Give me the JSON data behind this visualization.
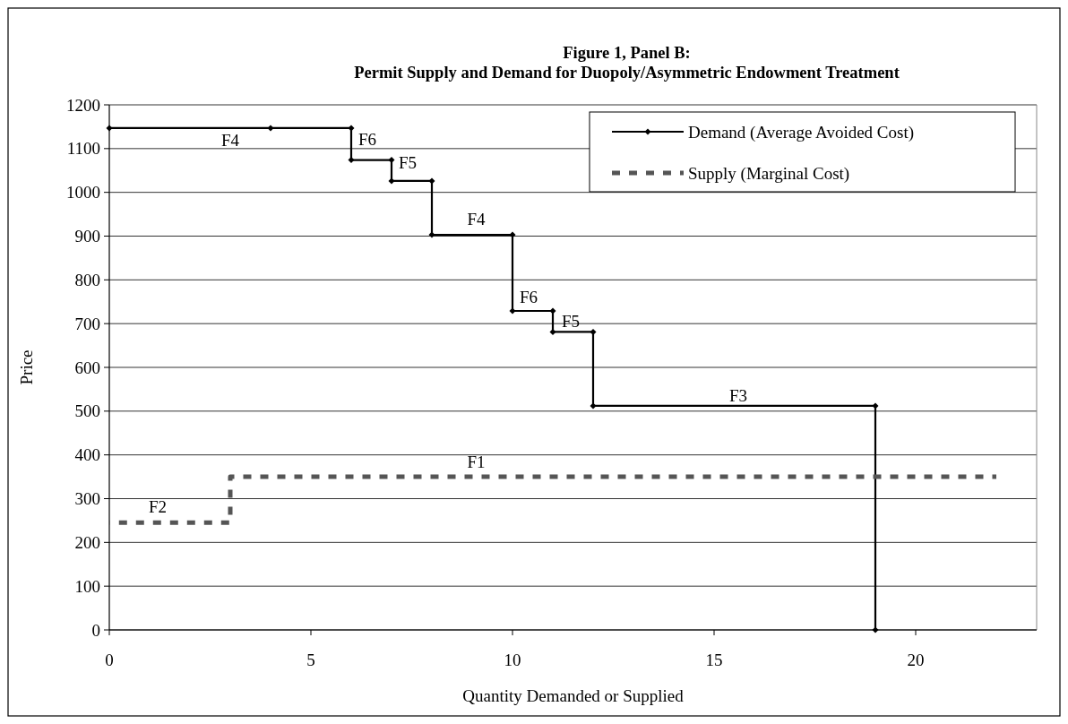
{
  "chart_data": {
    "type": "line",
    "title": "Figure 1, Panel B:",
    "subtitle": "Permit Supply and Demand for Duopoly/Asymmetric Endowment Treatment",
    "xlabel": "Quantity Demanded or Supplied",
    "ylabel": "Price",
    "series": [
      {
        "name": "Demand (Average Avoided Cost)",
        "color": "#000000",
        "marker": "diamond",
        "line_style": "solid",
        "x": [
          0,
          4,
          6,
          6,
          7,
          7,
          8,
          8,
          10,
          10,
          11,
          11,
          12,
          12,
          19,
          19
        ],
        "values": [
          1147,
          1147,
          1147,
          1074,
          1074,
          1026,
          1026,
          903,
          903,
          729,
          729,
          681,
          681,
          512,
          512,
          0
        ]
      },
      {
        "name": "Supply (Marginal Cost)",
        "color": "#555555",
        "marker": "none",
        "line_style": "dashed",
        "x": [
          0,
          3,
          3,
          22
        ],
        "values": [
          245,
          245,
          350,
          350
        ]
      }
    ],
    "xlim": [
      0,
      23
    ],
    "xticks": [
      0,
      5,
      10,
      15,
      20
    ],
    "ylim": [
      0,
      1200
    ],
    "yticks": [
      0,
      100,
      200,
      300,
      400,
      500,
      600,
      700,
      800,
      900,
      1000,
      1100,
      1200
    ],
    "grid": "y",
    "legend": "top right",
    "annotations": [
      {
        "text": "F4",
        "x": 3,
        "y": 1147
      },
      {
        "text": "F6",
        "x": 6,
        "y": 1121
      },
      {
        "text": "F5",
        "x": 7,
        "y": 1069
      },
      {
        "text": "F4",
        "x": 9.1,
        "y": 903
      },
      {
        "text": "F6",
        "x": 10,
        "y": 762
      },
      {
        "text": "F5",
        "x": 11,
        "y": 705
      },
      {
        "text": "F3",
        "x": 15.6,
        "y": 512
      },
      {
        "text": "F1",
        "x": 9.1,
        "y": 350
      },
      {
        "text": "F2",
        "x": 1.2,
        "y": 245
      }
    ]
  }
}
